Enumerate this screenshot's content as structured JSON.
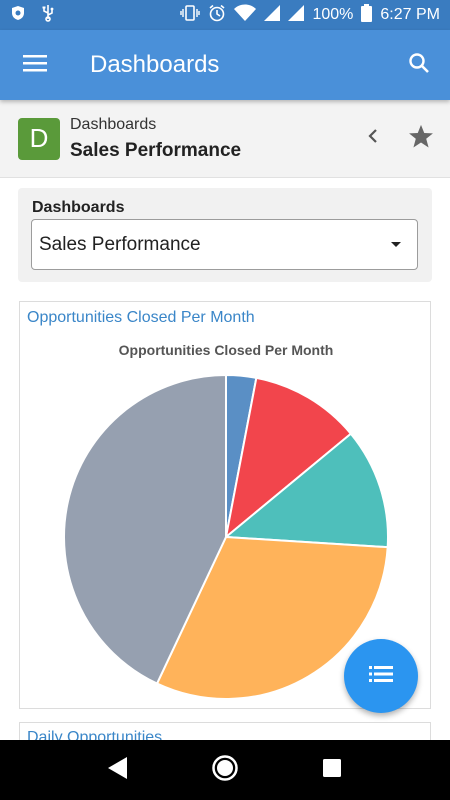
{
  "status_bar": {
    "battery": "100%",
    "time": "6:27 PM"
  },
  "app_bar": {
    "title": "Dashboards"
  },
  "header": {
    "avatar_letter": "D",
    "subtitle": "Dashboards",
    "title": "Sales Performance"
  },
  "selector": {
    "label": "Dashboards",
    "value": "Sales Performance"
  },
  "chart_card": {
    "title": "Opportunities Closed Per Month"
  },
  "next_card": {
    "title": "Daily Opportunities"
  },
  "colors": {
    "status_bar": "#3a7cc0",
    "app_bar": "#4a90d9",
    "link_blue": "#3a86c8",
    "fab": "#2b95f0",
    "avatar": "#5a9a3a"
  },
  "icons": {
    "menu": "menu-icon",
    "search": "search-icon",
    "back": "chevron-left-icon",
    "favorite": "star-icon",
    "fab": "list-icon"
  },
  "chart_data": {
    "type": "pie",
    "title": "Opportunities Closed Per Month",
    "slices": [
      {
        "value": 3,
        "color": "#5a8fc5"
      },
      {
        "value": 11,
        "color": "#f2454c"
      },
      {
        "value": 12,
        "color": "#4ebfbb"
      },
      {
        "value": 31,
        "color": "#ffb35a"
      },
      {
        "value": 43,
        "color": "#96a0b0"
      }
    ],
    "legend": "none"
  }
}
